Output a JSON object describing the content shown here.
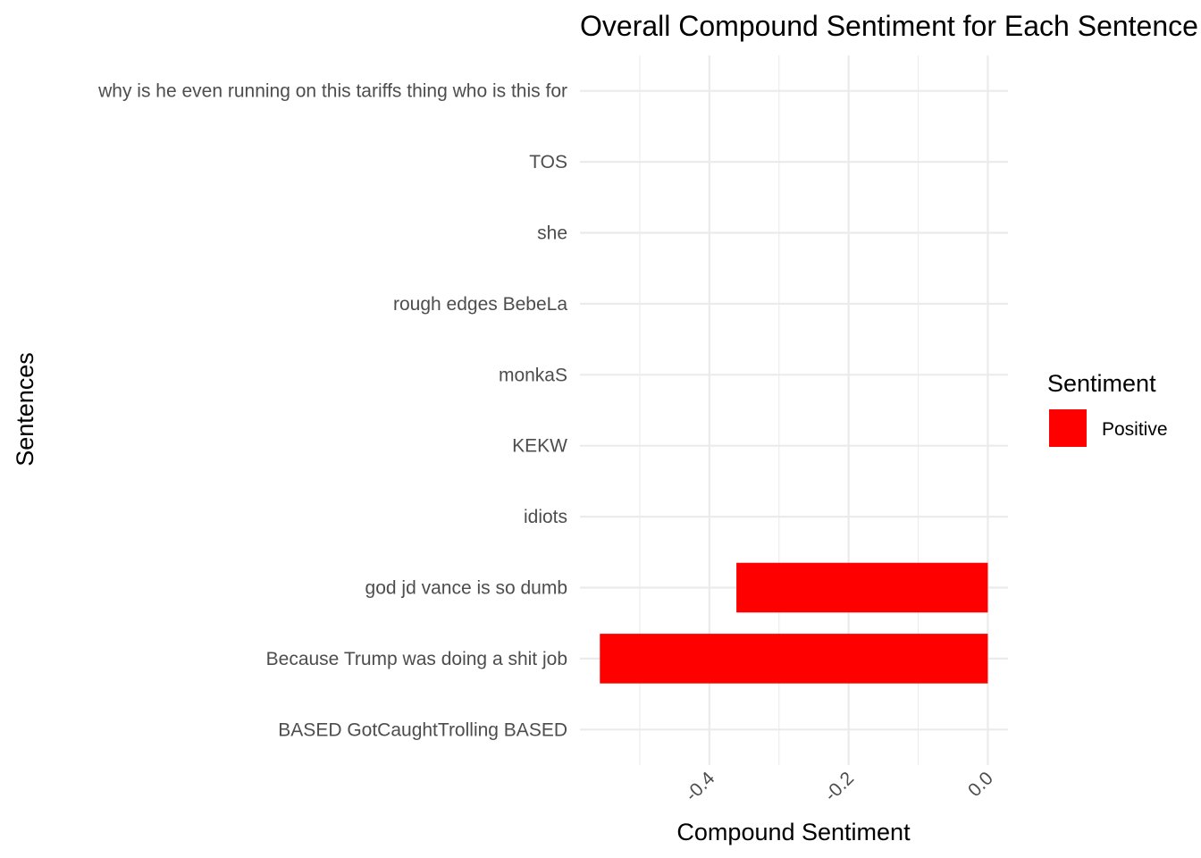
{
  "chart_data": {
    "type": "bar",
    "orientation": "horizontal",
    "title": "Overall Compound Sentiment for Each Sentence",
    "xlabel": "Compound Sentiment",
    "ylabel": "Sentences",
    "categories": [
      "BASED GotCaughtTrolling BASED",
      "Because Trump was doing a shit job",
      "god jd vance is so dumb",
      "idiots",
      "KEKW",
      "monkaS",
      "rough edges BebeLa",
      "she",
      "TOS",
      "why is he even running on this tariffs thing who is this for"
    ],
    "values": [
      0,
      -0.5574,
      -0.3612,
      0,
      0,
      0,
      0,
      0,
      0,
      0
    ],
    "xlim": [
      -0.586,
      0.029
    ],
    "xticks": [
      -0.4,
      -0.2,
      0.0
    ],
    "xtick_labels": [
      "-0.4",
      "-0.2",
      "0.0"
    ],
    "grid": true,
    "legend": {
      "title": "Sentiment",
      "placement": "right",
      "entries": [
        {
          "label": "Positive",
          "color": "#FF0000"
        }
      ]
    }
  }
}
